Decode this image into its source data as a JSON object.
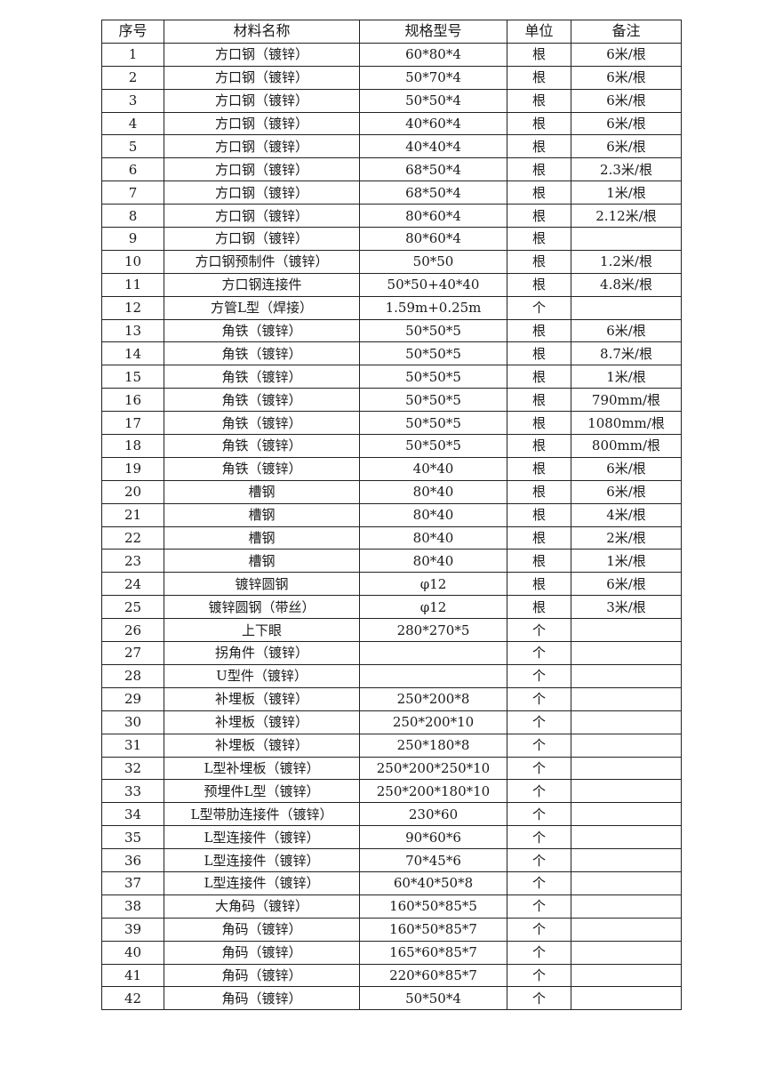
{
  "table": {
    "headers": [
      "序号",
      "材料名称",
      "规格型号",
      "单位",
      "备注"
    ],
    "rows": [
      [
        "1",
        "方口钢（镀锌）",
        "60*80*4",
        "根",
        "6米/根"
      ],
      [
        "2",
        "方口钢（镀锌）",
        "50*70*4",
        "根",
        "6米/根"
      ],
      [
        "3",
        "方口钢（镀锌）",
        "50*50*4",
        "根",
        "6米/根"
      ],
      [
        "4",
        "方口钢（镀锌）",
        "40*60*4",
        "根",
        "6米/根"
      ],
      [
        "5",
        "方口钢（镀锌）",
        "40*40*4",
        "根",
        "6米/根"
      ],
      [
        "6",
        "方口钢（镀锌）",
        "68*50*4",
        "根",
        "2.3米/根"
      ],
      [
        "7",
        "方口钢（镀锌）",
        "68*50*4",
        "根",
        "1米/根"
      ],
      [
        "8",
        "方口钢（镀锌）",
        "80*60*4",
        "根",
        "2.12米/根"
      ],
      [
        "9",
        "方口钢（镀锌）",
        "80*60*4",
        "根",
        ""
      ],
      [
        "10",
        "方口钢预制件（镀锌）",
        "50*50",
        "根",
        "1.2米/根"
      ],
      [
        "11",
        "方口钢连接件",
        "50*50+40*40",
        "根",
        "4.8米/根"
      ],
      [
        "12",
        "方管L型（焊接）",
        "1.59m+0.25m",
        "个",
        ""
      ],
      [
        "13",
        "角铁（镀锌）",
        "50*50*5",
        "根",
        "6米/根"
      ],
      [
        "14",
        "角铁（镀锌）",
        "50*50*5",
        "根",
        "8.7米/根"
      ],
      [
        "15",
        "角铁（镀锌）",
        "50*50*5",
        "根",
        "1米/根"
      ],
      [
        "16",
        "角铁（镀锌）",
        "50*50*5",
        "根",
        "790mm/根"
      ],
      [
        "17",
        "角铁（镀锌）",
        "50*50*5",
        "根",
        "1080mm/根"
      ],
      [
        "18",
        "角铁（镀锌）",
        "50*50*5",
        "根",
        "800mm/根"
      ],
      [
        "19",
        "角铁（镀锌）",
        "40*40",
        "根",
        "6米/根"
      ],
      [
        "20",
        "槽钢",
        "80*40",
        "根",
        "6米/根"
      ],
      [
        "21",
        "槽钢",
        "80*40",
        "根",
        "4米/根"
      ],
      [
        "22",
        "槽钢",
        "80*40",
        "根",
        "2米/根"
      ],
      [
        "23",
        "槽钢",
        "80*40",
        "根",
        "1米/根"
      ],
      [
        "24",
        "镀锌圆钢",
        "φ12",
        "根",
        "6米/根"
      ],
      [
        "25",
        "镀锌圆钢（带丝）",
        "φ12",
        "根",
        "3米/根"
      ],
      [
        "26",
        "上下眼",
        "280*270*5",
        "个",
        ""
      ],
      [
        "27",
        "拐角件（镀锌）",
        "",
        "个",
        ""
      ],
      [
        "28",
        "U型件（镀锌）",
        "",
        "个",
        ""
      ],
      [
        "29",
        "补埋板（镀锌）",
        "250*200*8",
        "个",
        ""
      ],
      [
        "30",
        "补埋板（镀锌）",
        "250*200*10",
        "个",
        ""
      ],
      [
        "31",
        "补埋板（镀锌）",
        "250*180*8",
        "个",
        ""
      ],
      [
        "32",
        "L型补埋板（镀锌）",
        "250*200*250*10",
        "个",
        ""
      ],
      [
        "33",
        "预埋件L型（镀锌）",
        "250*200*180*10",
        "个",
        ""
      ],
      [
        "34",
        "L型带肋连接件（镀锌）",
        "230*60",
        "个",
        ""
      ],
      [
        "35",
        "L型连接件（镀锌）",
        "90*60*6",
        "个",
        ""
      ],
      [
        "36",
        "L型连接件（镀锌）",
        "70*45*6",
        "个",
        ""
      ],
      [
        "37",
        "L型连接件（镀锌）",
        "60*40*50*8",
        "个",
        ""
      ],
      [
        "38",
        "大角码（镀锌）",
        "160*50*85*5",
        "个",
        ""
      ],
      [
        "39",
        "角码（镀锌）",
        "160*50*85*7",
        "个",
        ""
      ],
      [
        "40",
        "角码（镀锌）",
        "165*60*85*7",
        "个",
        ""
      ],
      [
        "41",
        "角码（镀锌）",
        "220*60*85*7",
        "个",
        ""
      ],
      [
        "42",
        "角码（镀锌）",
        "50*50*4",
        "个",
        ""
      ]
    ]
  }
}
